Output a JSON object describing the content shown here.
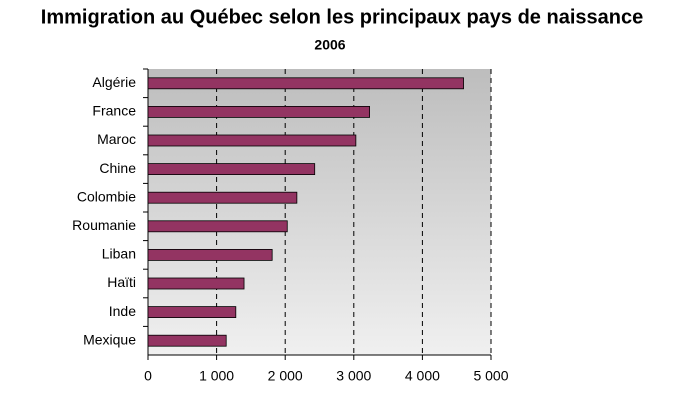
{
  "chart_data": {
    "type": "bar",
    "orientation": "horizontal",
    "title": "Immigration au Québec selon les principaux pays de naissance",
    "subtitle": "2006",
    "categories": [
      "Algérie",
      "France",
      "Maroc",
      "Chine",
      "Colombie",
      "Roumanie",
      "Liban",
      "Haïti",
      "Inde",
      "Mexique"
    ],
    "values": [
      4600,
      3230,
      3030,
      2430,
      2170,
      2030,
      1810,
      1400,
      1280,
      1140
    ],
    "color": "#933462",
    "xlim": [
      0,
      5000
    ],
    "xticks": [
      0,
      {
        "value": 1000,
        "label": "1 000"
      },
      {
        "value": 2000,
        "label": "2 000"
      },
      {
        "value": 3000,
        "label": "3 000"
      },
      {
        "value": 4000,
        "label": "4 000"
      },
      {
        "value": 5000,
        "label": "5 000"
      }
    ],
    "grid": true
  }
}
